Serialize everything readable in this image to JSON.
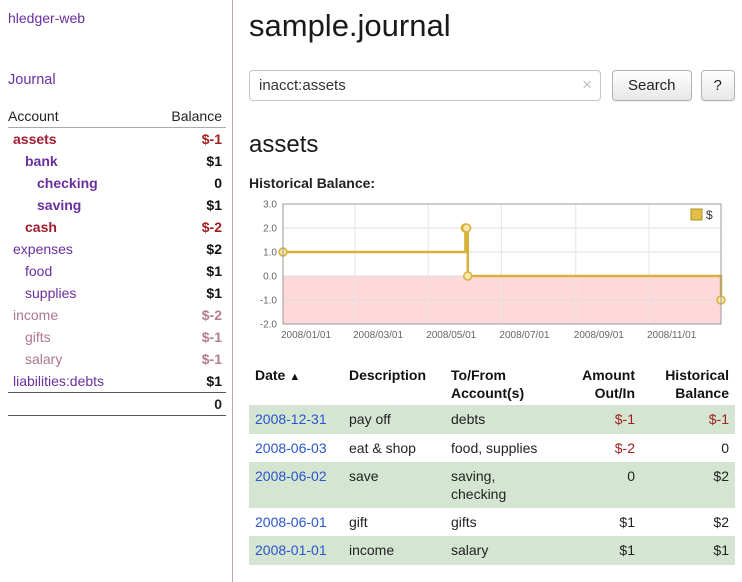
{
  "sidebar": {
    "app_title": "hledger-web",
    "journal_link": "Journal",
    "accounts": {
      "col_account": "Account",
      "col_balance": "Balance",
      "rows": [
        {
          "name": "assets",
          "balance": "$-1",
          "indent": 0,
          "name_style": "neg-bold",
          "bal_style": "neg"
        },
        {
          "name": "bank",
          "balance": "$1",
          "indent": 1,
          "name_style": "bold",
          "bal_style": ""
        },
        {
          "name": "checking",
          "balance": "0",
          "indent": 2,
          "name_style": "bold",
          "bal_style": ""
        },
        {
          "name": "saving",
          "balance": "$1",
          "indent": 2,
          "name_style": "bold",
          "bal_style": ""
        },
        {
          "name": "cash",
          "balance": "$-2",
          "indent": 1,
          "name_style": "neg-bold",
          "bal_style": "neg"
        },
        {
          "name": "expenses",
          "balance": "$2",
          "indent": 0,
          "name_style": "",
          "bal_style": ""
        },
        {
          "name": "food",
          "balance": "$1",
          "indent": 1,
          "name_style": "",
          "bal_style": ""
        },
        {
          "name": "supplies",
          "balance": "$1",
          "indent": 1,
          "name_style": "",
          "bal_style": ""
        },
        {
          "name": "income",
          "balance": "$-2",
          "indent": 0,
          "name_style": "faded",
          "bal_style": "neg-faded"
        },
        {
          "name": "gifts",
          "balance": "$-1",
          "indent": 1,
          "name_style": "faded",
          "bal_style": "neg-faded"
        },
        {
          "name": "salary",
          "balance": "$-1",
          "indent": 1,
          "name_style": "faded",
          "bal_style": "neg-faded"
        },
        {
          "name": "liabilities:debts",
          "balance": "$1",
          "indent": 0,
          "name_style": "",
          "bal_style": ""
        }
      ],
      "total": "0"
    }
  },
  "main": {
    "title": "sample.journal",
    "search": {
      "value": "inacct:assets",
      "clear_icon": "×",
      "button_label": "Search",
      "help_label": "?"
    },
    "account_heading": "assets",
    "chart_label": "Historical Balance:",
    "register": {
      "headers": [
        {
          "key": "date",
          "lines": [
            "Date"
          ],
          "align": "left",
          "sort_icon": "▲",
          "sortable": true
        },
        {
          "key": "description",
          "lines": [
            "Description"
          ],
          "align": "left",
          "sortable": false
        },
        {
          "key": "accounts",
          "lines": [
            "To/From",
            "Account(s)"
          ],
          "align": "left",
          "sortable": false
        },
        {
          "key": "amount",
          "lines": [
            "Amount",
            "Out/In"
          ],
          "align": "right",
          "sortable": false
        },
        {
          "key": "balance",
          "lines": [
            "Historical",
            "Balance"
          ],
          "align": "right",
          "sortable": false
        }
      ],
      "rows": [
        {
          "date": "2008-12-31",
          "description": "pay off",
          "accounts": "debts",
          "amount": "$-1",
          "amount_negative": true,
          "balance": "$-1",
          "balance_negative": true
        },
        {
          "date": "2008-06-03",
          "description": "eat & shop",
          "accounts": "food, supplies",
          "amount": "$-2",
          "amount_negative": true,
          "balance": "0",
          "balance_negative": false
        },
        {
          "date": "2008-06-02",
          "description": "save",
          "accounts": "saving, checking",
          "amount": "0",
          "amount_negative": false,
          "balance": "$2",
          "balance_negative": false
        },
        {
          "date": "2008-06-01",
          "description": "gift",
          "accounts": "gifts",
          "amount": "$1",
          "amount_negative": false,
          "balance": "$2",
          "balance_negative": false
        },
        {
          "date": "2008-01-01",
          "description": "income",
          "accounts": "salary",
          "amount": "$1",
          "amount_negative": false,
          "balance": "$1",
          "balance_negative": false
        }
      ]
    }
  },
  "chart_data": {
    "type": "line",
    "step": true,
    "title": "Historical Balance:",
    "series": [
      {
        "name": "$",
        "points": [
          [
            "2008-01-01",
            1
          ],
          [
            "2008-06-01",
            2
          ],
          [
            "2008-06-02",
            2
          ],
          [
            "2008-06-03",
            0
          ],
          [
            "2008-12-31",
            -1
          ]
        ]
      }
    ],
    "x_ticks": [
      "2008/01/01",
      "2008/03/01",
      "2008/05/01",
      "2008/07/01",
      "2008/09/01",
      "2008/11/01"
    ],
    "y_ticks": [
      "3.0",
      "2.0",
      "1.0",
      "0.0",
      "-1.0",
      "-2.0"
    ],
    "ylim": [
      -2,
      3
    ],
    "legend": "$",
    "legend_position": "top-right",
    "grid": true,
    "colors": {
      "line": "#d8b13c",
      "marker_fill": "#f5e6ab",
      "negative_region": "#ffd9d9",
      "legend_fill": "#e3bf4a",
      "legend_border": "#a8901f"
    }
  }
}
